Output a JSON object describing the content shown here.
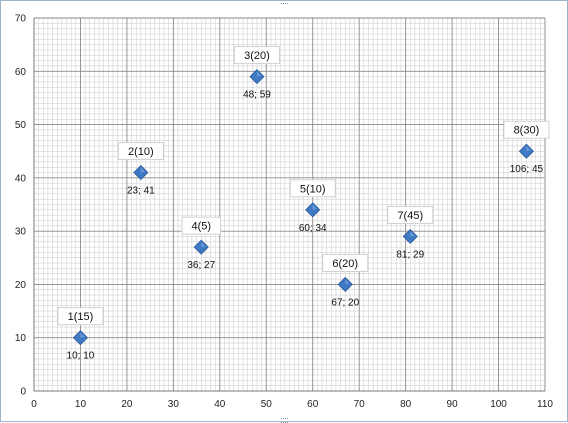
{
  "chart_data": {
    "type": "scatter",
    "title": "",
    "xlabel": "",
    "ylabel": "",
    "xlim": [
      0,
      110
    ],
    "ylim": [
      0,
      70
    ],
    "x_ticks": [
      "0",
      "10",
      "20",
      "30",
      "40",
      "50",
      "60",
      "70",
      "80",
      "90",
      "100",
      "110"
    ],
    "y_ticks": [
      "0",
      "10",
      "20",
      "30",
      "40",
      "50",
      "60",
      "70"
    ],
    "grid": "major and minor gridlines on",
    "marker": "diamond",
    "marker_color": "#3f79c4",
    "points": [
      {
        "x": 10,
        "y": 10,
        "label": "1(15)",
        "coord_label": "10; 10"
      },
      {
        "x": 23,
        "y": 41,
        "label": "2(10)",
        "coord_label": "23; 41"
      },
      {
        "x": 48,
        "y": 59,
        "label": "3(20)",
        "coord_label": "48; 59"
      },
      {
        "x": 36,
        "y": 27,
        "label": "4(5)",
        "coord_label": "36; 27"
      },
      {
        "x": 60,
        "y": 34,
        "label": "5(10)",
        "coord_label": "60; 34"
      },
      {
        "x": 67,
        "y": 20,
        "label": "6(20)",
        "coord_label": "67; 20"
      },
      {
        "x": 81,
        "y": 29,
        "label": "7(45)",
        "coord_label": "81; 29"
      },
      {
        "x": 106,
        "y": 45,
        "label": "8(30)",
        "coord_label": "106; 45"
      }
    ]
  }
}
